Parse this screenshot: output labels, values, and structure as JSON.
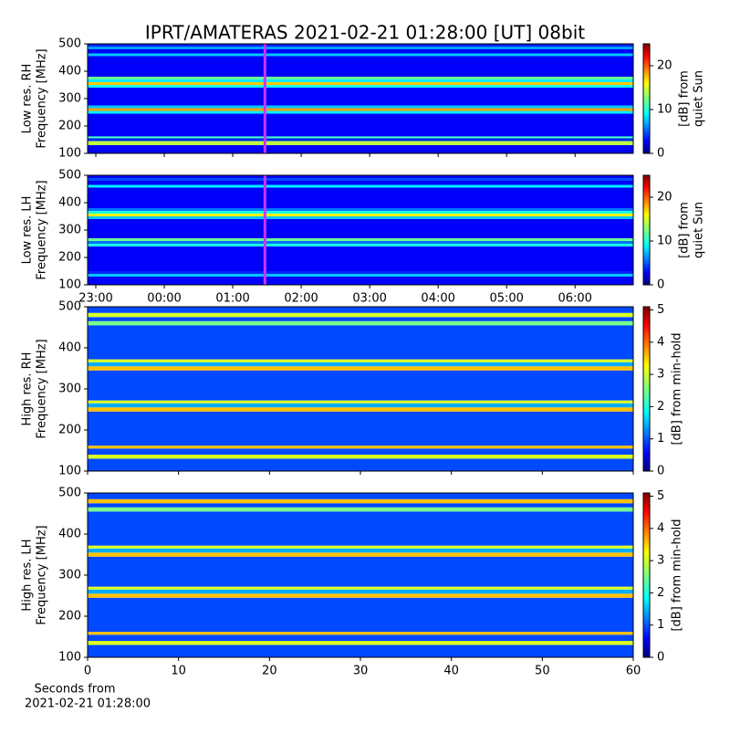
{
  "chart_data": [
    {
      "type": "heatmap",
      "title": "IPRT/AMATERAS 2021-02-21 01:28:00 [UT]   08bit",
      "ylabel": [
        "Low res. RH",
        "Frequency [MHz]"
      ],
      "ylim": [
        100,
        500
      ],
      "yticks": [
        100,
        200,
        300,
        400,
        500
      ],
      "xlim": [
        22.88,
        30.85
      ],
      "xticks": [
        23,
        24,
        25,
        26,
        27,
        28,
        29,
        30
      ],
      "xtick_labels": false,
      "ybins": [
        100,
        130,
        145,
        155,
        162,
        245,
        255,
        265,
        275,
        340,
        350,
        360,
        370,
        380,
        455,
        465,
        480,
        490,
        500
      ],
      "values": [
        3,
        14,
        4,
        11,
        3,
        9,
        18,
        8,
        3,
        10,
        17,
        9,
        12,
        3,
        8,
        3,
        7,
        4
      ],
      "clim": [
        0,
        25
      ],
      "cticks": [
        0,
        10,
        20
      ],
      "clabel": [
        "[dB] from",
        "quiet Sun"
      ],
      "markers": [
        {
          "x": 25.47,
          "color": "#cc33ff"
        }
      ]
    },
    {
      "type": "heatmap",
      "ylabel": [
        "Low res. LH",
        "Frequency [MHz]"
      ],
      "ylim": [
        100,
        500
      ],
      "yticks": [
        100,
        200,
        300,
        400,
        500
      ],
      "xlim": [
        22.88,
        30.85
      ],
      "xticks": [
        {
          "value": 23,
          "label": "23:00"
        },
        {
          "value": 24,
          "label": "00:00"
        },
        {
          "value": 25,
          "label": "01:00"
        },
        {
          "value": 26,
          "label": "02:00"
        },
        {
          "value": 27,
          "label": "03:00"
        },
        {
          "value": 28,
          "label": "04:00"
        },
        {
          "value": 29,
          "label": "05:00"
        },
        {
          "value": 30,
          "label": "06:00"
        }
      ],
      "xtick_labels": true,
      "ybins": [
        100,
        130,
        140,
        150,
        240,
        250,
        260,
        270,
        340,
        350,
        360,
        370,
        380,
        455,
        465,
        480,
        490,
        500
      ],
      "values": [
        3,
        8,
        4,
        3,
        10,
        6,
        12,
        3,
        8,
        16,
        10,
        6,
        3,
        9,
        3,
        5,
        3
      ],
      "clim": [
        0,
        25
      ],
      "cticks": [
        0,
        10,
        20
      ],
      "clabel": [
        "[dB] from",
        "quiet Sun"
      ],
      "markers": [
        {
          "x": 25.47,
          "color": "#cc33ff"
        }
      ]
    },
    {
      "type": "heatmap",
      "ylabel": [
        "High res. RH",
        "Frequency [MHz]"
      ],
      "ylim": [
        100,
        500
      ],
      "yticks": [
        100,
        200,
        300,
        400,
        500
      ],
      "xlim": [
        0,
        60
      ],
      "xticks": [
        0,
        10,
        20,
        30,
        40,
        50,
        60
      ],
      "xtick_labels": false,
      "ybins": [
        100,
        130,
        140,
        155,
        162,
        245,
        255,
        265,
        272,
        345,
        355,
        365,
        372,
        455,
        465,
        475,
        485,
        500
      ],
      "values": [
        1,
        3,
        1,
        3.5,
        1,
        3.5,
        1.5,
        3,
        1,
        3.5,
        1.5,
        3,
        1,
        2.5,
        1,
        3,
        1
      ],
      "clim": [
        0,
        5.1
      ],
      "cticks": [
        0,
        1,
        2,
        3,
        4,
        5
      ],
      "clabel": [
        "[dB] from min-hold"
      ]
    },
    {
      "type": "heatmap",
      "ylabel": [
        "High res. LH",
        "Frequency [MHz]"
      ],
      "ylim": [
        100,
        500
      ],
      "yticks": [
        100,
        200,
        300,
        400,
        500
      ],
      "xlim": [
        0,
        60
      ],
      "xticks": [
        0,
        10,
        20,
        30,
        40,
        50,
        60
      ],
      "xtick_labels": true,
      "xlabel": [
        "Seconds from",
        "2021-02-21 01:28:00"
      ],
      "ybins": [
        100,
        130,
        140,
        155,
        162,
        245,
        255,
        265,
        272,
        345,
        355,
        365,
        372,
        455,
        465,
        475,
        485,
        500
      ],
      "values": [
        1,
        3,
        1,
        3.5,
        1,
        3.5,
        1.5,
        3,
        1,
        3.5,
        1.5,
        3,
        1,
        2.5,
        1,
        3.5,
        1
      ],
      "clim": [
        0,
        5.1
      ],
      "cticks": [
        0,
        1,
        2,
        3,
        4,
        5
      ],
      "clabel": [
        "[dB] from min-hold"
      ]
    }
  ]
}
